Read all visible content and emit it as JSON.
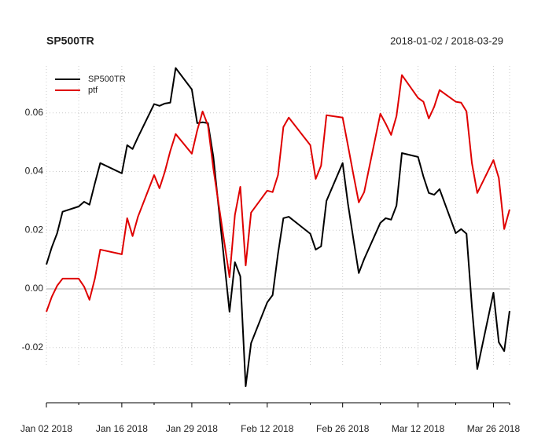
{
  "chart_data": {
    "type": "line",
    "title": "SP500TR",
    "subtitle": "2018-01-02 / 2018-03-29",
    "x": [
      "2018-01-02",
      "2018-01-03",
      "2018-01-04",
      "2018-01-05",
      "2018-01-08",
      "2018-01-09",
      "2018-01-10",
      "2018-01-11",
      "2018-01-12",
      "2018-01-16",
      "2018-01-17",
      "2018-01-18",
      "2018-01-19",
      "2018-01-22",
      "2018-01-23",
      "2018-01-24",
      "2018-01-25",
      "2018-01-26",
      "2018-01-29",
      "2018-01-30",
      "2018-01-31",
      "2018-02-01",
      "2018-02-02",
      "2018-02-05",
      "2018-02-06",
      "2018-02-07",
      "2018-02-08",
      "2018-02-09",
      "2018-02-12",
      "2018-02-13",
      "2018-02-14",
      "2018-02-15",
      "2018-02-16",
      "2018-02-20",
      "2018-02-21",
      "2018-02-22",
      "2018-02-23",
      "2018-02-26",
      "2018-02-27",
      "2018-02-28",
      "2018-03-01",
      "2018-03-02",
      "2018-03-05",
      "2018-03-06",
      "2018-03-07",
      "2018-03-08",
      "2018-03-09",
      "2018-03-12",
      "2018-03-13",
      "2018-03-14",
      "2018-03-15",
      "2018-03-16",
      "2018-03-19",
      "2018-03-20",
      "2018-03-21",
      "2018-03-22",
      "2018-03-23",
      "2018-03-26",
      "2018-03-27",
      "2018-03-28",
      "2018-03-29"
    ],
    "series": [
      {
        "name": "SP500TR",
        "color": "#000000",
        "values": [
          0.0083,
          0.0142,
          0.019,
          0.0263,
          0.0281,
          0.0297,
          0.0287,
          0.036,
          0.0429,
          0.0394,
          0.049,
          0.0477,
          0.0517,
          0.063,
          0.0624,
          0.0632,
          0.0635,
          0.0753,
          0.068,
          0.0565,
          0.0568,
          0.0565,
          0.045,
          -0.0078,
          0.0091,
          0.0043,
          -0.0332,
          -0.0185,
          -0.0046,
          -0.0021,
          0.012,
          0.0241,
          0.0246,
          0.0188,
          0.0134,
          0.0145,
          0.03,
          0.0429,
          0.0289,
          0.017,
          0.0054,
          0.0102,
          0.0225,
          0.0241,
          0.0236,
          0.0284,
          0.0463,
          0.045,
          0.0383,
          0.0327,
          0.0321,
          0.034,
          0.019,
          0.0204,
          0.0188,
          -0.006,
          -0.0273,
          -0.0013,
          -0.0182,
          -0.0212,
          -0.0075
        ]
      },
      {
        "name": "ptf",
        "color": "#df0000",
        "values": [
          -0.0078,
          -0.0027,
          0.0011,
          0.0035,
          0.0035,
          0.0008,
          -0.0037,
          0.0035,
          0.0134,
          0.0118,
          0.0241,
          0.018,
          0.0246,
          0.0388,
          0.0343,
          0.04,
          0.047,
          0.0528,
          0.0461,
          0.054,
          0.0605,
          0.0557,
          0.041,
          0.004,
          0.0252,
          0.0348,
          0.008,
          0.026,
          0.0335,
          0.033,
          0.0388,
          0.0552,
          0.0584,
          0.049,
          0.0375,
          0.042,
          0.0592,
          0.0584,
          0.0488,
          0.039,
          0.0295,
          0.033,
          0.0597,
          0.0563,
          0.0525,
          0.0589,
          0.0729,
          0.0651,
          0.0638,
          0.0581,
          0.0621,
          0.0678,
          0.0638,
          0.0635,
          0.0605,
          0.0429,
          0.0327,
          0.0439,
          0.0378,
          0.0204,
          0.0271
        ]
      }
    ],
    "xlim": [
      "2018-01-02",
      "2018-03-29"
    ],
    "xticks": [
      {
        "value": "2018-01-02",
        "label": "Jan 02 2018"
      },
      {
        "value": "2018-01-16",
        "label": "Jan 16 2018"
      },
      {
        "value": "2018-01-29",
        "label": "Jan 29 2018"
      },
      {
        "value": "2018-02-12",
        "label": "Feb 12 2018"
      },
      {
        "value": "2018-02-26",
        "label": "Feb 26 2018"
      },
      {
        "value": "2018-03-12",
        "label": "Mar 12 2018"
      },
      {
        "value": "2018-03-26",
        "label": "Mar 26 2018"
      }
    ],
    "xminorticks": [
      "2018-01-08",
      "2018-01-22",
      "2018-02-05",
      "2018-02-20",
      "2018-03-05",
      "2018-03-19",
      "2018-03-29"
    ],
    "ylim": [
      -0.038,
      0.076
    ],
    "yticks": [
      -0.02,
      {
        "value": 0,
        "label": "0.00"
      },
      0.02,
      0.04,
      0.06
    ],
    "grid": true,
    "zero_line": true,
    "legend": "top-left"
  }
}
